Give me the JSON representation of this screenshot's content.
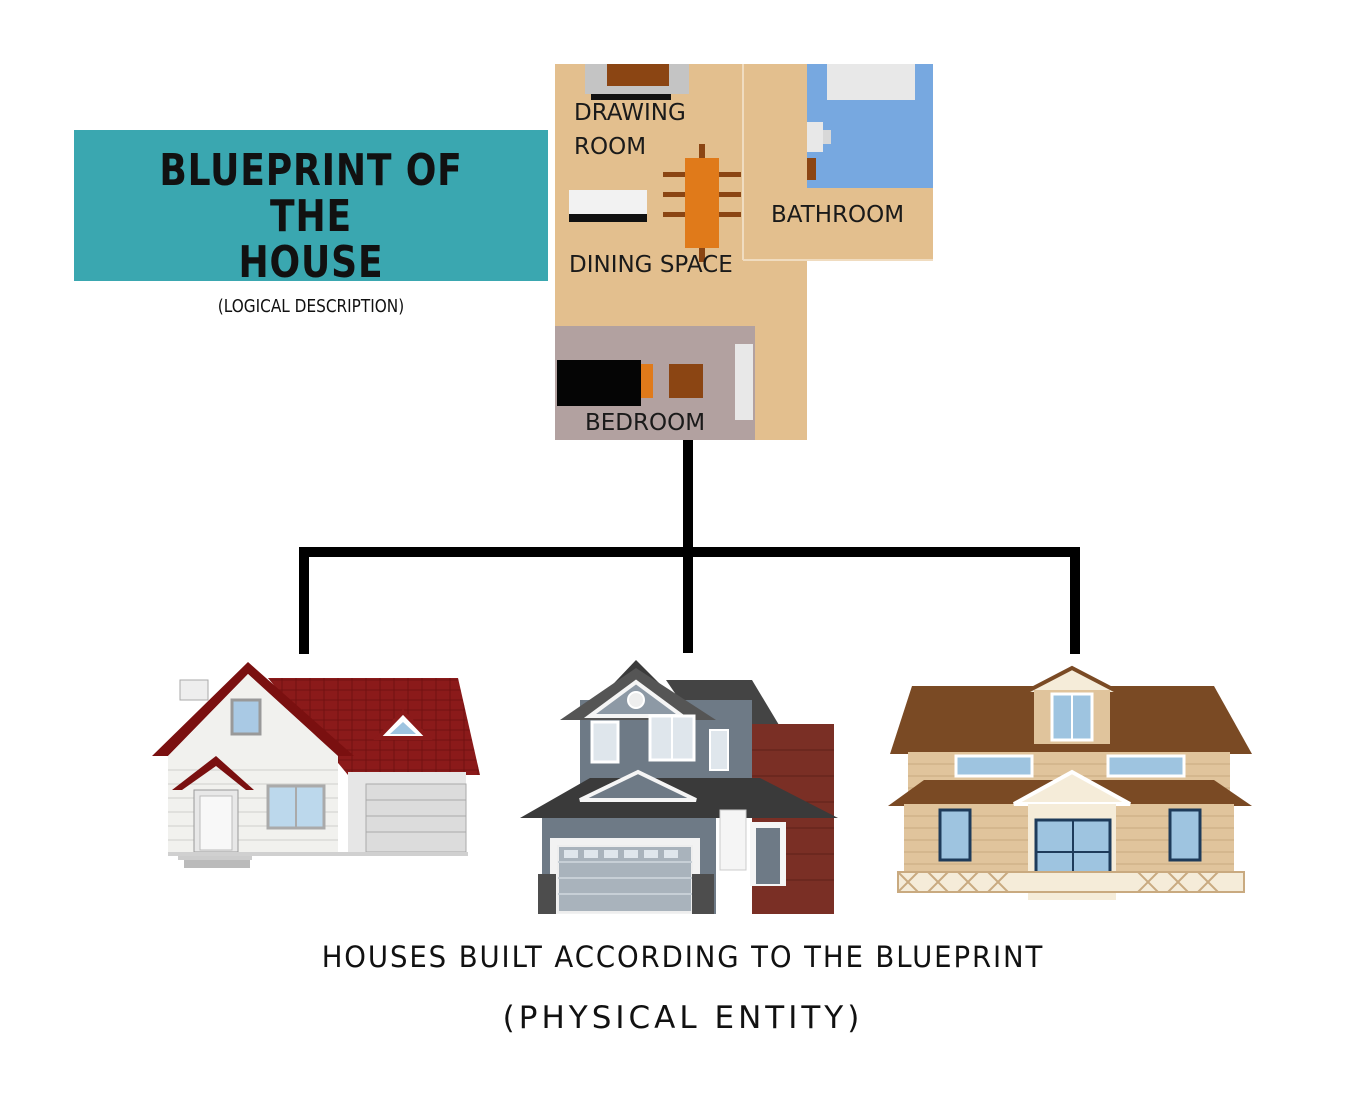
{
  "title": {
    "main_line1": "BLUEPRINT OF THE",
    "main_line2": "HOUSE",
    "sub": "(LOGICAL DESCRIPTION)"
  },
  "floorplan": {
    "rooms": {
      "drawing_line1": "DRAWING",
      "drawing_line2": "ROOM",
      "dining": "DINING SPACE",
      "bathroom": "BATHROOM",
      "bedroom": "BEDROOM"
    },
    "colors": {
      "floor": "#e3bf8e",
      "bathroom_water": "#77a8e0",
      "bedroom": "#b2a1a0",
      "table": "#e07a1a",
      "furniture_brown": "#8b4513"
    }
  },
  "caption": {
    "line1": "HOUSES BUILT ACCORDING TO THE BLUEPRINT",
    "line2": "(PHYSICAL ENTITY)"
  },
  "houses": [
    {
      "icon": "white-house-red-roof-icon"
    },
    {
      "icon": "modern-two-story-house-icon"
    },
    {
      "icon": "beige-house-brown-roof-icon"
    }
  ]
}
